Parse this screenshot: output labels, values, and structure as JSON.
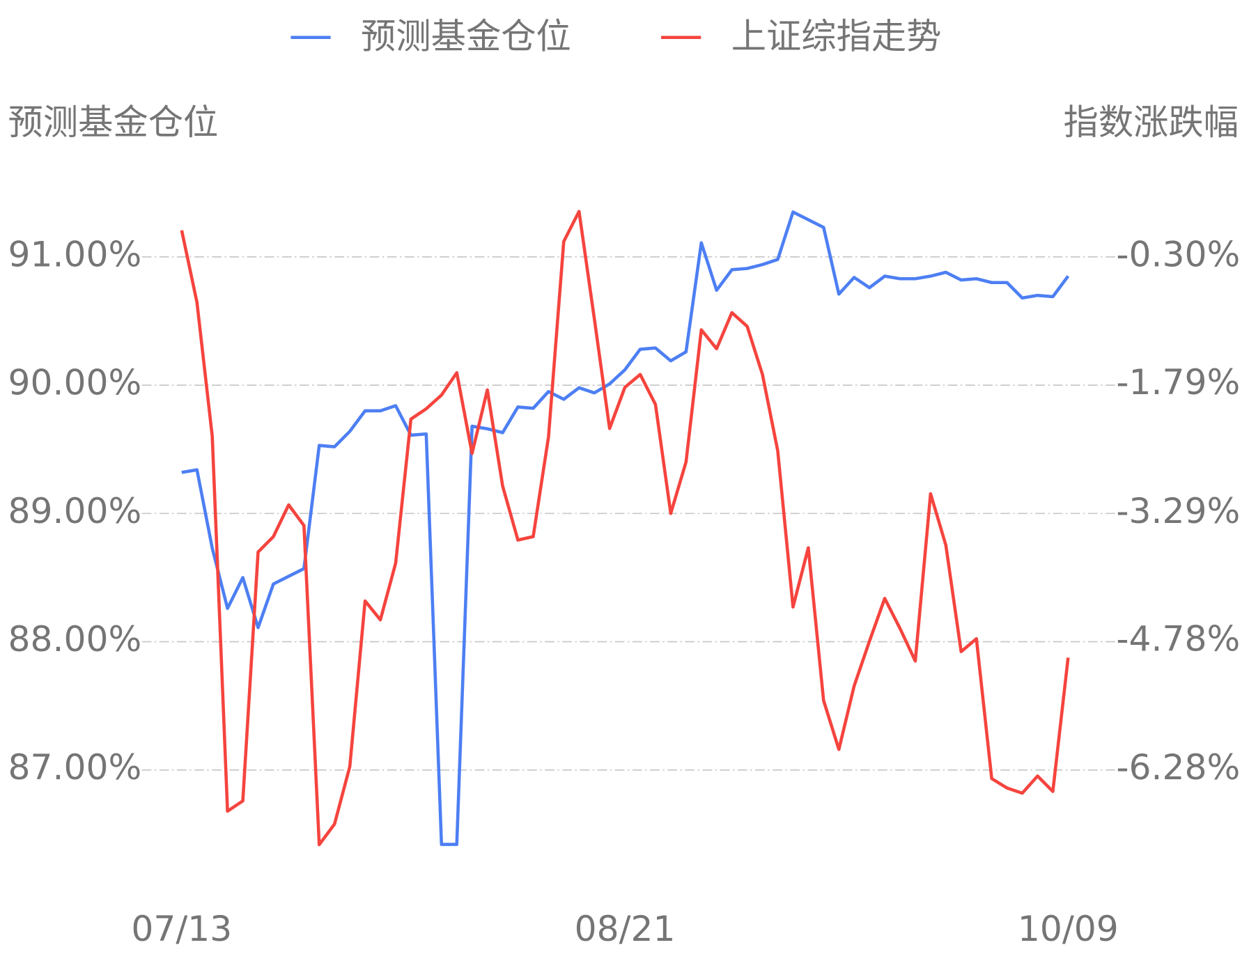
{
  "chart_data": {
    "type": "line",
    "y_label": "预测基金仓位",
    "y2_label": "指数涨跌幅",
    "categories": [
      "07/13",
      null,
      null,
      null,
      null,
      null,
      null,
      null,
      null,
      null,
      null,
      null,
      null,
      null,
      null,
      null,
      null,
      null,
      null,
      null,
      null,
      null,
      null,
      null,
      null,
      null,
      null,
      null,
      null,
      "08/21",
      null,
      null,
      null,
      null,
      null,
      null,
      null,
      null,
      null,
      null,
      null,
      null,
      null,
      null,
      null,
      null,
      null,
      null,
      null,
      null,
      null,
      null,
      null,
      null,
      null,
      null,
      null,
      null,
      "10/09"
    ],
    "series": [
      {
        "name": "预测基金仓位",
        "color": "#4d7ff3",
        "axis": "y",
        "values": [
          89.32,
          89.34,
          88.73,
          88.26,
          88.5,
          88.11,
          88.45,
          88.51,
          88.57,
          89.53,
          89.52,
          89.64,
          89.8,
          89.8,
          89.84,
          89.61,
          89.62,
          86.42,
          86.42,
          89.68,
          89.66,
          89.63,
          89.83,
          89.82,
          89.95,
          89.89,
          89.98,
          89.94,
          90.01,
          90.12,
          90.28,
          90.29,
          90.19,
          90.26,
          91.11,
          90.74,
          90.9,
          90.91,
          90.94,
          90.98,
          91.35,
          91.29,
          91.23,
          90.71,
          90.84,
          90.76,
          90.85,
          90.83,
          90.83,
          90.85,
          90.88,
          90.82,
          90.83,
          90.8,
          90.8,
          90.68,
          90.7,
          90.69,
          90.85
        ]
      },
      {
        "name": "上证综指走势",
        "color": "#f5443e",
        "axis": "y2",
        "values": [
          0.01,
          -0.83,
          -2.39,
          -6.76,
          -6.64,
          -3.74,
          -3.56,
          -3.19,
          -3.43,
          -7.15,
          -6.91,
          -6.24,
          -4.31,
          -4.53,
          -3.87,
          -2.19,
          -2.07,
          -1.91,
          -1.65,
          -2.59,
          -1.85,
          -2.97,
          -3.6,
          -3.56,
          -2.4,
          -0.12,
          0.23,
          -1.02,
          -2.3,
          -1.82,
          -1.67,
          -2.02,
          -3.29,
          -2.69,
          -1.15,
          -1.37,
          -0.95,
          -1.11,
          -1.67,
          -2.56,
          -4.38,
          -3.69,
          -5.47,
          -6.04,
          -5.3,
          -4.78,
          -4.28,
          -4.63,
          -5.01,
          -3.06,
          -3.66,
          -4.9,
          -4.75,
          -6.38,
          -6.49,
          -6.55,
          -6.35,
          -6.53,
          -4.97
        ]
      }
    ],
    "ylim": [
      86.2,
      91.6
    ],
    "yticks": [
      {
        "value": 87,
        "label": "87.00%"
      },
      {
        "value": 88,
        "label": "88.00%"
      },
      {
        "value": 89,
        "label": "89.00%"
      },
      {
        "value": 90,
        "label": "90.00%"
      },
      {
        "value": 91,
        "label": "91.00%"
      }
    ],
    "y2lim": [
      -7.476,
      0.597
    ],
    "y2ticks": [
      {
        "value": -6.28,
        "label": "-6.28%"
      },
      {
        "value": -4.78,
        "label": "-4.78%"
      },
      {
        "value": -3.29,
        "label": "-3.29%"
      },
      {
        "value": -1.79,
        "label": "-1.79%"
      },
      {
        "value": -0.3,
        "label": "-0.30%"
      }
    ],
    "grid": true,
    "legend": "top"
  }
}
